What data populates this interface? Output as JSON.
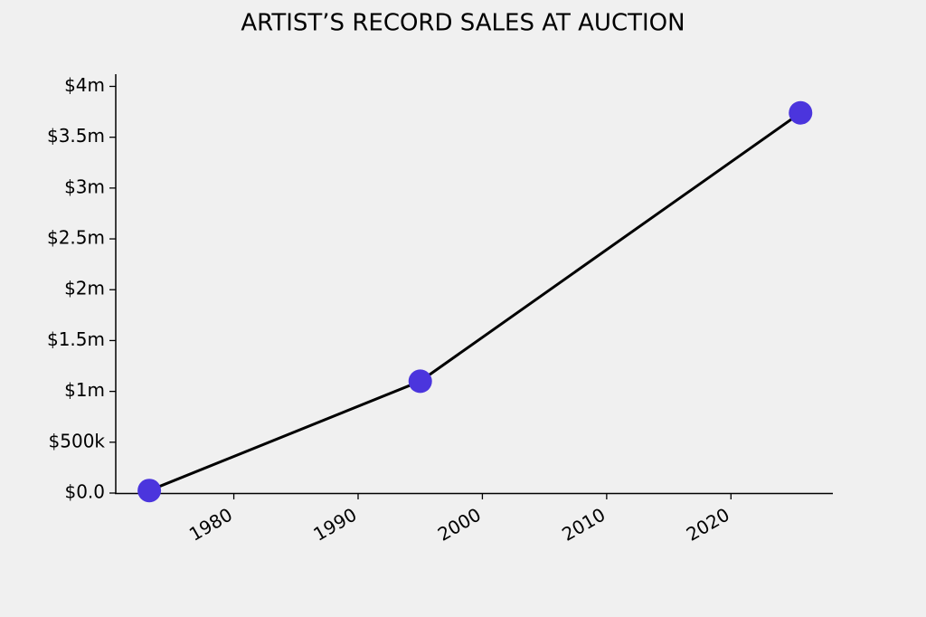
{
  "chart_data": {
    "type": "line",
    "title": "ARTIST’S RECORD SALES AT AUCTION",
    "x": [
      1973.2,
      1995,
      2025.6
    ],
    "series": [
      {
        "values": [
          25000,
          1100000,
          3740000
        ],
        "color": "#4b35dd",
        "line_color": "#000000"
      }
    ],
    "xlim": [
      1970.5,
      2028.2
    ],
    "xticks": [
      1980,
      1990,
      2000,
      2010,
      2020
    ],
    "ylim": [
      0,
      4120000
    ],
    "yticks": [
      {
        "value": 0,
        "label": "$0.0"
      },
      {
        "value": 500000,
        "label": "$500k"
      },
      {
        "value": 1000000,
        "label": "$1m"
      },
      {
        "value": 1500000,
        "label": "$1.5m"
      },
      {
        "value": 2000000,
        "label": "$2m"
      },
      {
        "value": 2500000,
        "label": "$2.5m"
      },
      {
        "value": 3000000,
        "label": "$3m"
      },
      {
        "value": 3500000,
        "label": "$3.5m"
      },
      {
        "value": 4000000,
        "label": "$4m"
      }
    ],
    "grid": false
  }
}
